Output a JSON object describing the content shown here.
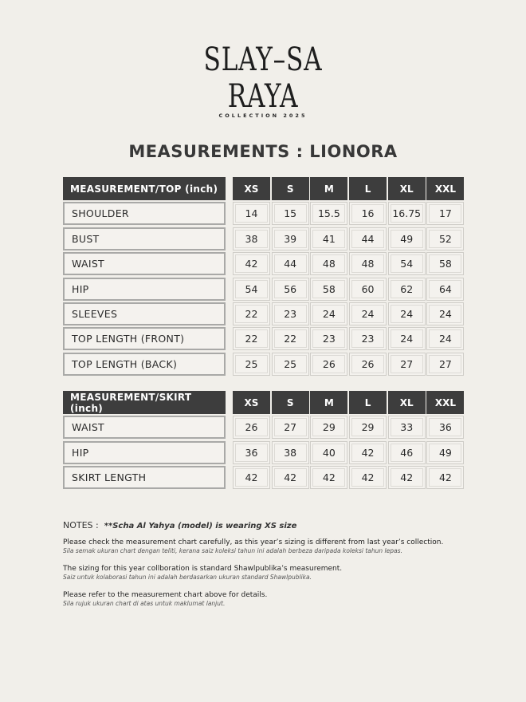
{
  "logo": {
    "line1": "SLAY–SA",
    "line2": "RAYA",
    "subtitle": "COLLECTION 2025"
  },
  "title": "MEASUREMENTS : LIONORA",
  "sizes": [
    "XS",
    "S",
    "M",
    "L",
    "XL",
    "XXL"
  ],
  "top_table": {
    "header": "MEASUREMENT/TOP (inch)",
    "rows": [
      {
        "label": "SHOULDER",
        "values": [
          "14",
          "15",
          "15.5",
          "16",
          "16.75",
          "17"
        ]
      },
      {
        "label": "BUST",
        "values": [
          "38",
          "39",
          "41",
          "44",
          "49",
          "52"
        ]
      },
      {
        "label": "WAIST",
        "values": [
          "42",
          "44",
          "48",
          "48",
          "54",
          "58"
        ]
      },
      {
        "label": "HIP",
        "values": [
          "54",
          "56",
          "58",
          "60",
          "62",
          "64"
        ]
      },
      {
        "label": "SLEEVES",
        "values": [
          "22",
          "23",
          "24",
          "24",
          "24",
          "24"
        ]
      },
      {
        "label": "TOP LENGTH (FRONT)",
        "values": [
          "22",
          "22",
          "23",
          "23",
          "24",
          "24"
        ]
      },
      {
        "label": "TOP LENGTH (BACK)",
        "values": [
          "25",
          "25",
          "26",
          "26",
          "27",
          "27"
        ]
      }
    ]
  },
  "skirt_table": {
    "header": "MEASUREMENT/SKIRT (inch)",
    "rows": [
      {
        "label": "WAIST",
        "values": [
          "26",
          "27",
          "29",
          "29",
          "33",
          "36"
        ]
      },
      {
        "label": "HIP",
        "values": [
          "36",
          "38",
          "40",
          "42",
          "46",
          "49"
        ]
      },
      {
        "label": "SKIRT LENGTH",
        "values": [
          "42",
          "42",
          "42",
          "42",
          "42",
          "42"
        ]
      }
    ]
  },
  "notes": {
    "label": "NOTES :",
    "model": "**Scha Al Yahya (model) is wearing XS size",
    "items": [
      {
        "en": "Please check the measurement chart carefully, as this year’s sizing is different from last year’s collection.",
        "ms": "Sila semak ukuran chart dengan teliti, kerana saiz koleksi tahun ini adalah  berbeza daripada koleksi tahun lepas."
      },
      {
        "en": "The sizing for this year collboration is standard Shawlpublika’s measurement.",
        "ms": "Saiz untuk kolaborasi tahun ini adalah berdasarkan ukuran standard Shawlpublika."
      },
      {
        "en": "Please refer to the measurement chart above for details.",
        "ms": "Sila rujuk ukuran chart di atas untuk maklumat lanjut."
      }
    ]
  }
}
